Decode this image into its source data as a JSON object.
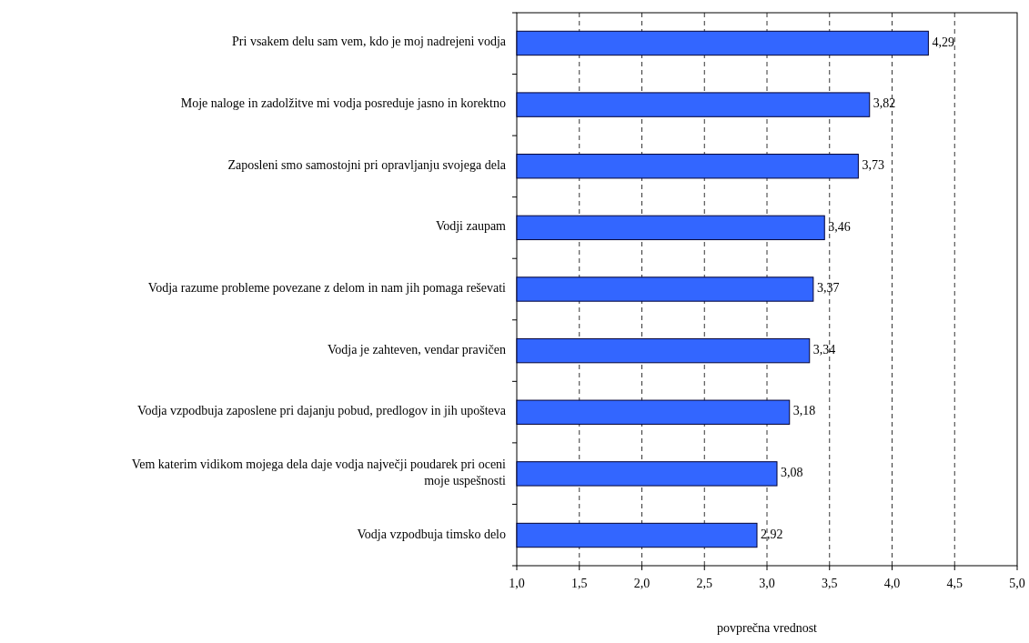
{
  "chart_data": {
    "type": "bar",
    "orientation": "horizontal",
    "xlabel": "povprečna vrednost",
    "categories": [
      "Pri vsakem delu sam vem, kdo je moj nadrejeni vodja",
      "Moje naloge in zadolžitve mi vodja posreduje jasno in korektno",
      "Zaposleni smo samostojni pri opravljanju svojega dela",
      "Vodji zaupam",
      "Vodja razume probleme povezane z delom in nam jih pomaga reševati",
      "Vodja je zahteven, vendar pravičen",
      "Vodja vzpodbuja zaposlene  pri dajanju pobud, predlogov in jih upošteva",
      "Vem katerim vidikom mojega dela daje vodja največji poudarek pri oceni moje uspešnosti",
      "Vodja vzpodbuja timsko delo"
    ],
    "values": [
      4.29,
      3.82,
      3.73,
      3.46,
      3.37,
      3.34,
      3.18,
      3.08,
      2.92
    ],
    "value_labels": [
      "4,29",
      "3,82",
      "3,73",
      "3,46",
      "3,37",
      "3,34",
      "3,18",
      "3,08",
      "2,92"
    ],
    "color": "#3366ff",
    "xlim": [
      1,
      5
    ],
    "xticks": [
      {
        "value": 1,
        "label": "1,0"
      },
      {
        "value": 1.5,
        "label": "1,5"
      },
      {
        "value": 2,
        "label": "2,0"
      },
      {
        "value": 2.5,
        "label": "2,5"
      },
      {
        "value": 3,
        "label": "3,0"
      },
      {
        "value": 3.5,
        "label": "3,5"
      },
      {
        "value": 4,
        "label": "4,0"
      },
      {
        "value": 4.5,
        "label": "4,5"
      },
      {
        "value": 5,
        "label": "5,0"
      }
    ],
    "grid": "x"
  }
}
